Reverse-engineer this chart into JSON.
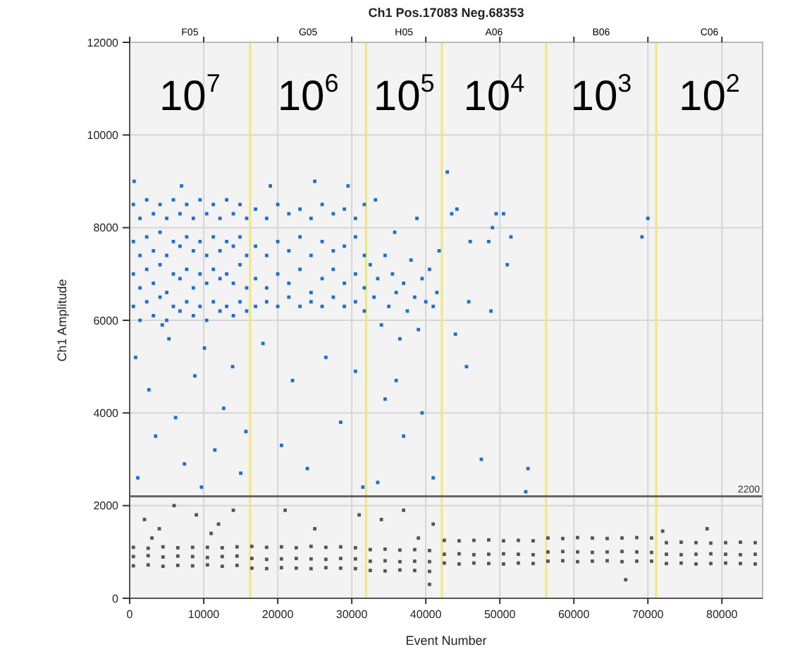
{
  "chart_data": {
    "type": "scatter",
    "title": "Ch1 Pos.17083 Neg.68353",
    "xlabel": "Event Number",
    "ylabel": "Ch1 Amplitude",
    "xlim": [
      0,
      85500
    ],
    "xticks": [
      0,
      10000,
      20000,
      30000,
      40000,
      50000,
      60000,
      70000,
      80000
    ],
    "ylim": [
      0,
      12000
    ],
    "yticks": [
      0,
      2000,
      4000,
      6000,
      8000,
      10000,
      12000
    ],
    "grid": true,
    "marker": "square",
    "ref_lines": [
      {
        "axis": "y",
        "value": 2200,
        "label": "2200",
        "color": "#666666"
      },
      {
        "axis": "x",
        "value": 16260,
        "label": null,
        "color": "#f0e878"
      },
      {
        "axis": "x",
        "value": 31940,
        "label": null,
        "color": "#f0e878"
      },
      {
        "axis": "x",
        "value": 42170,
        "label": null,
        "color": "#f0e878"
      },
      {
        "axis": "x",
        "value": 56260,
        "label": null,
        "color": "#f0e878"
      },
      {
        "axis": "x",
        "value": 71120,
        "label": null,
        "color": "#f0e878"
      }
    ],
    "annotations": [
      "F05",
      "G05",
      "H05",
      "A06",
      "B06",
      "C06",
      "10$^{7}$",
      "10$^{6}$",
      "10$^{5}$",
      "10$^{4}$",
      "10$^{3}$",
      "10$^{2}$"
    ],
    "series": [
      {
        "color": "#1a6fd8",
        "x": [
          500,
          500,
          500,
          500,
          1400,
          1400,
          1400,
          1400,
          2300,
          2300,
          2300,
          2300,
          3200,
          3200,
          3200,
          3200,
          4100,
          4100,
          4100,
          4100,
          5000,
          5000,
          5000,
          5000,
          5900,
          5900,
          5900,
          5900,
          6800,
          6800,
          6800,
          6800,
          7700,
          7700,
          7700,
          7700,
          8600,
          8600,
          8600,
          8600,
          9500,
          9500,
          9500,
          9500,
          10400,
          10400,
          10400,
          10400,
          11300,
          11300,
          11300,
          11300,
          12200,
          12200,
          12200,
          12200,
          13100,
          13100,
          13100,
          13100,
          14000,
          14000,
          14000,
          14000,
          14900,
          14900,
          14900,
          14900,
          15800,
          15800,
          15800,
          15800,
          800,
          2600,
          3500,
          1100,
          5300,
          6200,
          7400,
          8800,
          10100,
          11500,
          12700,
          13900,
          15000,
          15700,
          4400,
          9700,
          600,
          7000,
          17000,
          17000,
          17000,
          17000,
          18500,
          18500,
          18500,
          18500,
          20000,
          20000,
          20000,
          20000,
          21500,
          21500,
          21500,
          21500,
          23000,
          23000,
          23000,
          23000,
          24500,
          24500,
          24500,
          24500,
          26000,
          26000,
          26000,
          26000,
          27500,
          27500,
          27500,
          27500,
          29000,
          29000,
          29000,
          29000,
          30500,
          30500,
          30500,
          30500,
          31700,
          31700,
          31700,
          31700,
          18000,
          20500,
          22000,
          24000,
          26500,
          28500,
          30500,
          31500,
          19000,
          25000,
          29500,
          32500,
          33000,
          33500,
          34000,
          34500,
          35000,
          35500,
          36000,
          36500,
          37000,
          37500,
          38000,
          38500,
          39000,
          39500,
          40000,
          40500,
          41000,
          41500,
          41800,
          33200,
          35800,
          38800,
          42900,
          34500,
          37000,
          39500,
          41000,
          33500,
          36000,
          43500,
          44200,
          46000,
          48500,
          49000,
          49500,
          50500,
          51500,
          51000,
          45800,
          48800,
          45500,
          44000,
          53500,
          53800,
          47500,
          70000,
          69200
        ],
        "values": [
          8500,
          7700,
          7000,
          6300,
          8200,
          7400,
          6700,
          6000,
          8600,
          7800,
          7100,
          6400,
          8300,
          7500,
          6800,
          6100,
          8500,
          7900,
          7200,
          6500,
          8200,
          7400,
          6600,
          6000,
          8600,
          7700,
          7000,
          6300,
          8300,
          7600,
          6900,
          6200,
          8500,
          7800,
          7100,
          6400,
          8200,
          7500,
          6700,
          6100,
          8600,
          7700,
          7000,
          6300,
          8300,
          7400,
          6800,
          6000,
          8500,
          7800,
          7100,
          6400,
          8200,
          7500,
          6900,
          6200,
          8600,
          7700,
          7000,
          6300,
          8300,
          7600,
          6800,
          6100,
          8500,
          7800,
          7200,
          6400,
          8200,
          7400,
          6700,
          6200,
          5200,
          4500,
          3500,
          2600,
          5600,
          3900,
          2900,
          4800,
          5400,
          3200,
          4100,
          5000,
          2700,
          3600,
          5900,
          2400,
          9000,
          8900,
          8400,
          7600,
          6900,
          6300,
          8200,
          7400,
          6700,
          6400,
          8500,
          7700,
          7000,
          6300,
          8300,
          7500,
          6800,
          6500,
          8400,
          7800,
          7100,
          6300,
          8200,
          7400,
          6600,
          6400,
          8500,
          7700,
          6900,
          6300,
          8300,
          7500,
          7100,
          6500,
          8400,
          7600,
          6800,
          6300,
          8200,
          7800,
          7000,
          6400,
          8500,
          7400,
          6700,
          6200,
          5500,
          3300,
          4700,
          2800,
          5200,
          3800,
          4900,
          2400,
          8900,
          9000,
          8900,
          7200,
          6500,
          6900,
          5900,
          7400,
          6300,
          7000,
          6600,
          5600,
          6800,
          6200,
          7300,
          6500,
          5800,
          6900,
          6400,
          7100,
          6300,
          6600,
          7500,
          8600,
          7900,
          8200,
          9200,
          4300,
          3500,
          4000,
          2600,
          2500,
          4700,
          8300,
          8400,
          7700,
          7700,
          8000,
          8300,
          8300,
          7800,
          7200,
          6400,
          6200,
          5000,
          5700,
          2300,
          2800,
          3000,
          8200,
          7800
        ]
      },
      {
        "color": "#555555",
        "x": [
          500,
          500,
          500,
          2500,
          2500,
          2500,
          4500,
          4500,
          4500,
          6500,
          6500,
          6500,
          8500,
          8500,
          8500,
          10500,
          10500,
          10500,
          12500,
          12500,
          12500,
          14500,
          14500,
          14500,
          16500,
          16500,
          16500,
          18500,
          18500,
          18500,
          20500,
          20500,
          20500,
          22500,
          22500,
          22500,
          24500,
          24500,
          24500,
          26500,
          26500,
          26500,
          28500,
          28500,
          28500,
          30500,
          30500,
          30500,
          32500,
          32500,
          32500,
          34500,
          34500,
          34500,
          36500,
          36500,
          36500,
          38500,
          38500,
          38500,
          40500,
          40500,
          40500,
          42500,
          42500,
          42500,
          44500,
          44500,
          44500,
          46500,
          46500,
          46500,
          48500,
          48500,
          48500,
          50500,
          50500,
          50500,
          52500,
          52500,
          52500,
          54500,
          54500,
          54500,
          56500,
          56500,
          56500,
          58500,
          58500,
          58500,
          60500,
          60500,
          60500,
          62500,
          62500,
          62500,
          64500,
          64500,
          64500,
          66500,
          66500,
          66500,
          68500,
          68500,
          68500,
          70500,
          70500,
          70500,
          72500,
          72500,
          72500,
          74500,
          74500,
          74500,
          76500,
          76500,
          76500,
          78500,
          78500,
          78500,
          80500,
          80500,
          80500,
          82500,
          82500,
          82500,
          84500,
          84500,
          84500,
          2000,
          4000,
          6000,
          9000,
          12000,
          14000,
          3000,
          11000,
          21000,
          25000,
          31000,
          34000,
          37000,
          39000,
          41000,
          72000,
          78000,
          67000,
          40500
        ],
        "values": [
          700,
          900,
          1100,
          720,
          920,
          1080,
          690,
          890,
          1110,
          710,
          910,
          1090,
          700,
          900,
          1100,
          720,
          880,
          1100,
          690,
          900,
          1090,
          710,
          910,
          1110,
          650,
          860,
          1120,
          640,
          840,
          1100,
          660,
          850,
          1110,
          650,
          860,
          1090,
          640,
          850,
          1120,
          660,
          840,
          1100,
          650,
          860,
          1110,
          640,
          850,
          1090,
          600,
          800,
          1050,
          590,
          810,
          1060,
          610,
          790,
          1040,
          600,
          800,
          1050,
          580,
          790,
          1030,
          760,
          950,
          1250,
          740,
          960,
          1240,
          760,
          940,
          1250,
          750,
          950,
          1260,
          740,
          960,
          1240,
          760,
          950,
          1250,
          750,
          940,
          1240,
          800,
          1000,
          1300,
          810,
          1010,
          1290,
          790,
          1000,
          1310,
          800,
          990,
          1300,
          810,
          1000,
          1290,
          790,
          1010,
          1300,
          800,
          1000,
          1310,
          800,
          990,
          1300,
          750,
          950,
          1200,
          760,
          940,
          1210,
          740,
          950,
          1200,
          750,
          960,
          1190,
          760,
          950,
          1200,
          750,
          940,
          1210,
          740,
          950,
          1200,
          1700,
          1500,
          2000,
          1800,
          1600,
          1900,
          1300,
          1400,
          1900,
          1500,
          1800,
          1700,
          1900,
          1300,
          1600,
          1450,
          1500,
          400,
          300
        ]
      }
    ]
  }
}
